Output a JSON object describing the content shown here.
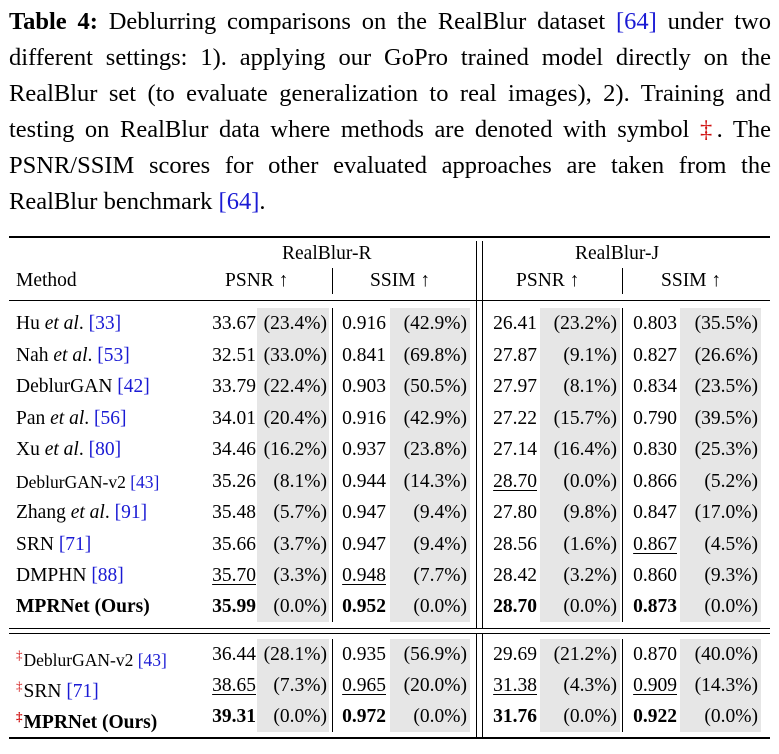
{
  "caption": {
    "label": "Table 4:",
    "text_1": " Deblurring comparisons on the RealBlur dataset ",
    "ref_1": "[64]",
    "text_2": " under two different settings: 1). applying our GoPro trained model directly on the RealBlur set (to evaluate generalization to real images), 2). Training and testing on RealBlur data where methods are denoted with symbol ",
    "symbol": "‡",
    "text_3": ". The PSNR/SSIM scores for other evaluated approaches are taken from the RealBlur benchmark ",
    "ref_2": "[64]",
    "text_4": "."
  },
  "header": {
    "group_r": "RealBlur-R",
    "group_j": "RealBlur-J",
    "method": "Method",
    "psnr": "PSNR ↑",
    "ssim": "SSIM ↑"
  },
  "rows": [
    {
      "pre": "Hu ",
      "em": "et al",
      "post": ". ",
      "ref": "[33]",
      "r_psnr": "33.67",
      "r_psnr_pct": "(23.4%)",
      "r_ssim": "0.916",
      "r_ssim_pct": "(42.9%)",
      "j_psnr": "26.41",
      "j_psnr_pct": "(23.2%)",
      "j_ssim": "0.803",
      "j_ssim_pct": "(35.5%)"
    },
    {
      "pre": "Nah ",
      "em": "et al",
      "post": ". ",
      "ref": "[53]",
      "r_psnr": "32.51",
      "r_psnr_pct": "(33.0%)",
      "r_ssim": "0.841",
      "r_ssim_pct": "(69.8%)",
      "j_psnr": "27.87",
      "j_psnr_pct": "(9.1%)",
      "j_ssim": "0.827",
      "j_ssim_pct": "(26.6%)"
    },
    {
      "pre": "DeblurGAN ",
      "em": "",
      "post": "",
      "ref": "[42]",
      "r_psnr": "33.79",
      "r_psnr_pct": "(22.4%)",
      "r_ssim": "0.903",
      "r_ssim_pct": "(50.5%)",
      "j_psnr": "27.97",
      "j_psnr_pct": "(8.1%)",
      "j_ssim": "0.834",
      "j_ssim_pct": "(23.5%)"
    },
    {
      "pre": "Pan ",
      "em": "et al",
      "post": ". ",
      "ref": "[56]",
      "r_psnr": "34.01",
      "r_psnr_pct": "(20.4%)",
      "r_ssim": "0.916",
      "r_ssim_pct": "(42.9%)",
      "j_psnr": "27.22",
      "j_psnr_pct": "(15.7%)",
      "j_ssim": "0.790",
      "j_ssim_pct": "(39.5%)"
    },
    {
      "pre": "Xu ",
      "em": "et al",
      "post": ". ",
      "ref": "[80]",
      "r_psnr": "34.46",
      "r_psnr_pct": "(16.2%)",
      "r_ssim": "0.937",
      "r_ssim_pct": "(23.8%)",
      "j_psnr": "27.14",
      "j_psnr_pct": "(16.4%)",
      "j_ssim": "0.830",
      "j_ssim_pct": "(25.3%)"
    },
    {
      "pre": "DeblurGAN-v2 ",
      "em": "",
      "post": "",
      "ref": "[43]",
      "small": true,
      "r_psnr": "35.26",
      "r_psnr_pct": "(8.1%)",
      "r_ssim": "0.944",
      "r_ssim_pct": "(14.3%)",
      "j_psnr": "28.70",
      "j_psnr_pct": "(0.0%)",
      "j_ssim": "0.866",
      "j_ssim_pct": "(5.2%)",
      "ul": [
        "j_psnr"
      ]
    },
    {
      "pre": "Zhang ",
      "em": "et al",
      "post": ". ",
      "ref": "[91]",
      "r_psnr": "35.48",
      "r_psnr_pct": "(5.7%)",
      "r_ssim": "0.947",
      "r_ssim_pct": "(9.4%)",
      "j_psnr": "27.80",
      "j_psnr_pct": "(9.8%)",
      "j_ssim": "0.847",
      "j_ssim_pct": "(17.0%)"
    },
    {
      "pre": "SRN ",
      "em": "",
      "post": "",
      "ref": "[71]",
      "r_psnr": "35.66",
      "r_psnr_pct": "(3.7%)",
      "r_ssim": "0.947",
      "r_ssim_pct": "(9.4%)",
      "j_psnr": "28.56",
      "j_psnr_pct": "(1.6%)",
      "j_ssim": "0.867",
      "j_ssim_pct": "(4.5%)",
      "ul": [
        "j_ssim"
      ]
    },
    {
      "pre": "DMPHN ",
      "em": "",
      "post": "",
      "ref": "[88]",
      "r_psnr": "35.70",
      "r_psnr_pct": "(3.3%)",
      "r_ssim": "0.948",
      "r_ssim_pct": "(7.7%)",
      "j_psnr": "28.42",
      "j_psnr_pct": "(3.2%)",
      "j_ssim": "0.860",
      "j_ssim_pct": "(9.3%)",
      "ul": [
        "r_psnr",
        "r_ssim"
      ]
    },
    {
      "pre": "MPRNet (Ours)",
      "em": "",
      "post": "",
      "ref": "",
      "bold": true,
      "r_psnr": "35.99",
      "r_psnr_pct": "(0.0%)",
      "r_ssim": "0.952",
      "r_ssim_pct": "(0.0%)",
      "j_psnr": "28.70",
      "j_psnr_pct": "(0.0%)",
      "j_ssim": "0.873",
      "j_ssim_pct": "(0.0%)",
      "boldvals": [
        "r_psnr",
        "r_ssim",
        "j_psnr",
        "j_ssim"
      ]
    },
    {
      "dag": "‡",
      "pre": "DeblurGAN-v2 ",
      "em": "",
      "post": "",
      "ref": "[43]",
      "small": true,
      "r_psnr": "36.44",
      "r_psnr_pct": "(28.1%)",
      "r_ssim": "0.935",
      "r_ssim_pct": "(56.9%)",
      "j_psnr": "29.69",
      "j_psnr_pct": "(21.2%)",
      "j_ssim": "0.870",
      "j_ssim_pct": "(40.0%)"
    },
    {
      "dag": "‡",
      "pre": "SRN ",
      "em": "",
      "post": "",
      "ref": "[71]",
      "r_psnr": "38.65",
      "r_psnr_pct": "(7.3%)",
      "r_ssim": "0.965",
      "r_ssim_pct": "(20.0%)",
      "j_psnr": "31.38",
      "j_psnr_pct": "(4.3%)",
      "j_ssim": "0.909",
      "j_ssim_pct": "(14.3%)",
      "ul": [
        "r_psnr",
        "r_ssim",
        "j_psnr",
        "j_ssim"
      ]
    },
    {
      "dag": "‡",
      "pre": "MPRNet (Ours)",
      "em": "",
      "post": "",
      "ref": "",
      "bold": true,
      "r_psnr": "39.31",
      "r_psnr_pct": "(0.0%)",
      "r_ssim": "0.972",
      "r_ssim_pct": "(0.0%)",
      "j_psnr": "31.76",
      "j_psnr_pct": "(0.0%)",
      "j_ssim": "0.922",
      "j_ssim_pct": "(0.0%)",
      "boldvals": [
        "r_psnr",
        "r_ssim",
        "j_psnr",
        "j_ssim"
      ]
    }
  ]
}
